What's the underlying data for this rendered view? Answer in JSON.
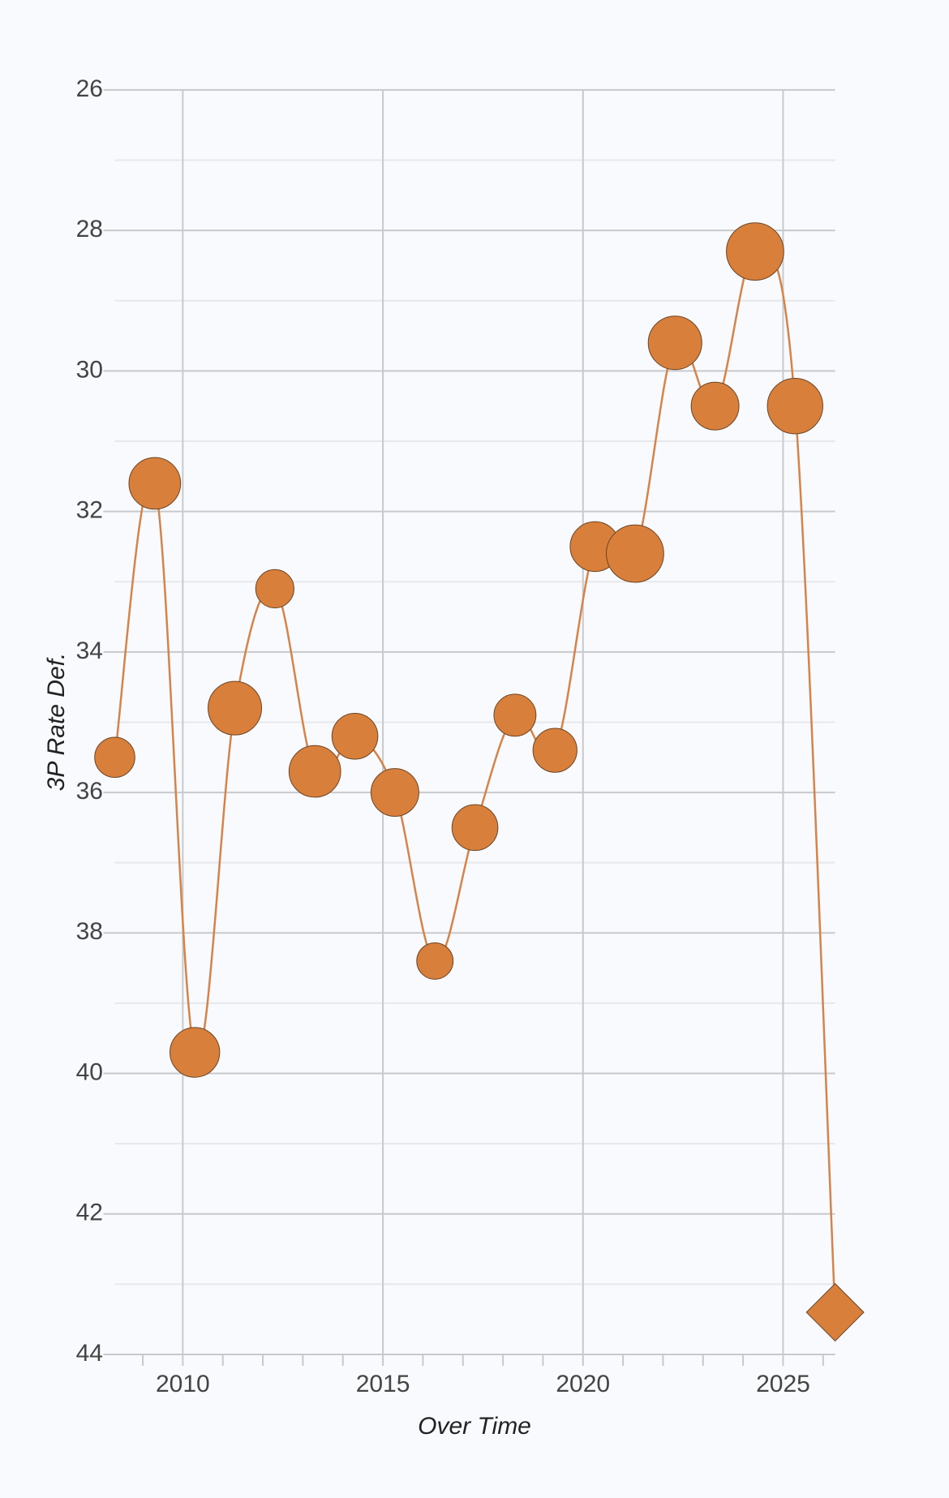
{
  "chart_data": {
    "type": "bubble_line",
    "x_label": "Over Time",
    "y_label": "3P Rate Def.",
    "xlim": [
      2008.3,
      2026.3
    ],
    "xticks": [
      2010,
      2015,
      2020,
      2025
    ],
    "x_minor_ticks": [
      2009,
      2011,
      2012,
      2013,
      2014,
      2016,
      2017,
      2018,
      2019,
      2021,
      2022,
      2023,
      2024,
      2026
    ],
    "ylim": [
      26,
      44
    ],
    "y_inverted": true,
    "yticks": [
      26,
      28,
      30,
      32,
      34,
      36,
      38,
      40,
      42,
      44
    ],
    "y_minor_ticks": [
      27,
      29,
      31,
      33,
      35,
      37,
      39,
      41,
      43
    ],
    "grid": true,
    "series": [
      {
        "color": "#d97f3c",
        "line_color": "#d4844a",
        "x": [
          2008.3,
          2009.3,
          2010.3,
          2011.3,
          2012.3,
          2013.3,
          2014.3,
          2015.3,
          2016.3,
          2017.3,
          2018.3,
          2019.3,
          2020.3,
          2021.3,
          2022.3,
          2023.3,
          2024.3,
          2025.3,
          2026.3
        ],
        "values": [
          35.5,
          31.6,
          39.7,
          34.8,
          33.1,
          35.7,
          35.2,
          36.0,
          38.4,
          36.5,
          34.9,
          35.4,
          32.5,
          32.6,
          29.6,
          30.5,
          28.3,
          30.5,
          43.4
        ],
        "sizes": [
          21,
          27,
          26,
          28,
          20,
          27,
          24,
          25,
          19,
          24,
          22,
          23,
          26,
          30,
          28,
          25,
          30,
          29,
          30
        ],
        "markers": [
          "circle",
          "circle",
          "circle",
          "circle",
          "circle",
          "circle",
          "circle",
          "circle",
          "circle",
          "circle",
          "circle",
          "circle",
          "circle",
          "circle",
          "circle",
          "circle",
          "circle",
          "circle",
          "diamond"
        ]
      }
    ]
  }
}
